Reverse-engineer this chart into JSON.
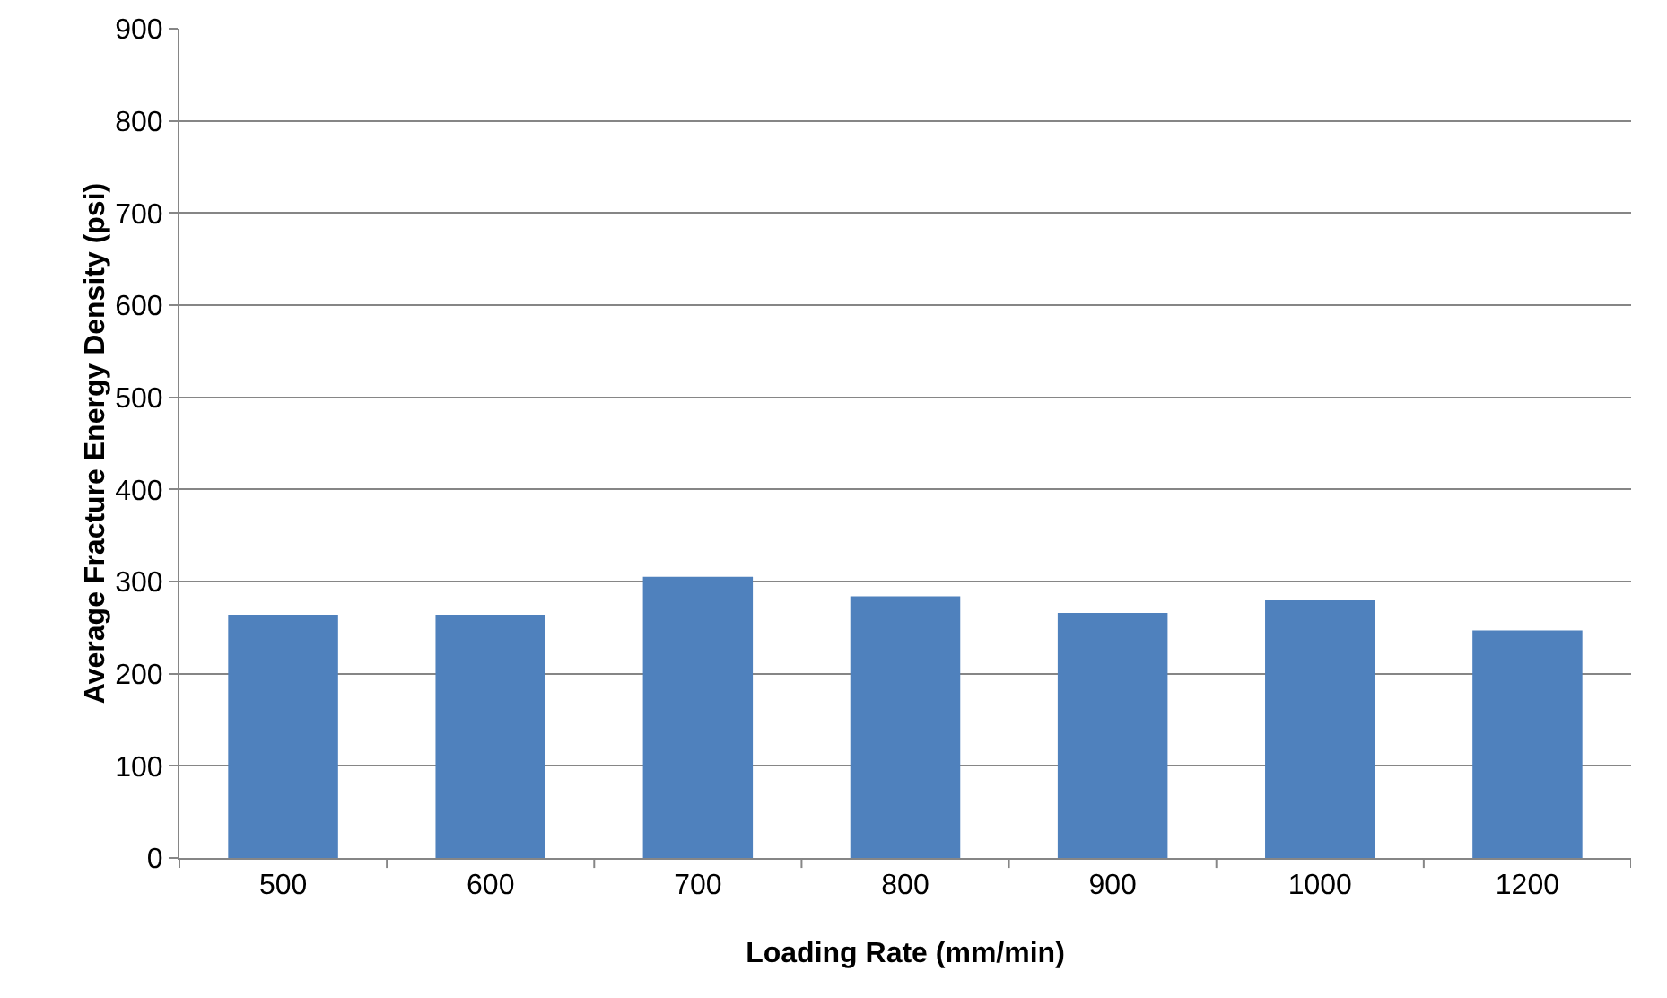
{
  "chart_data": {
    "type": "bar",
    "xlabel": "Loading Rate (mm/min)",
    "ylabel": "Average Fracture Energy Density (psi)",
    "categories": [
      "500",
      "600",
      "700",
      "800",
      "900",
      "1000",
      "1200"
    ],
    "values": [
      264,
      264,
      305,
      284,
      266,
      280,
      247
    ],
    "color": "#4f81bd",
    "ylim": [
      0,
      900
    ],
    "yticks": [
      0,
      100,
      200,
      300,
      400,
      500,
      600,
      700,
      800,
      900
    ],
    "grid": "y",
    "legend": false
  }
}
